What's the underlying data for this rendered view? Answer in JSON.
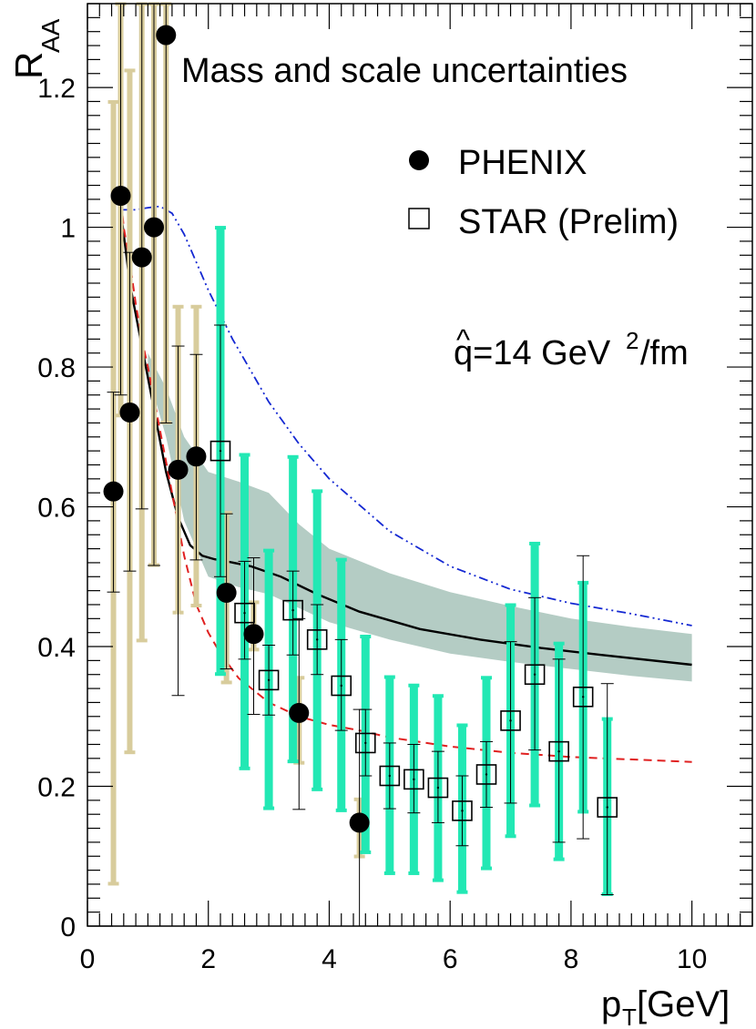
{
  "chart_data": {
    "type": "scatter",
    "title": "Mass and scale uncertainties",
    "annotation": {
      "hat": "^",
      "text": "q=14 GeV",
      "sup": "2",
      "tail": "/fm"
    },
    "xlabel": {
      "main": "p",
      "sub": "T",
      "rest": "[GeV]"
    },
    "ylabel": {
      "main": "R",
      "sub": "AA"
    },
    "xlim": [
      0,
      11
    ],
    "ylim": [
      0,
      1.32
    ],
    "x_ticks": [
      "0",
      "2",
      "4",
      "6",
      "8",
      "10"
    ],
    "y_ticks": [
      "0",
      "0.2",
      "0.4",
      "0.6",
      "0.8",
      "1",
      "1.2"
    ],
    "colors": {
      "phenix_sys": "#d8cc9c",
      "star_sys": "#22e8b4",
      "band": "#b4ccc4",
      "solid": "#000000",
      "dashed": "#e02020",
      "dashdot": "#1428d2"
    },
    "legend": [
      {
        "label": "PHENIX",
        "marker": "filled-circle"
      },
      {
        "label": "STAR (Prelim)",
        "marker": "open-square"
      }
    ],
    "series": [
      {
        "name": "PHENIX",
        "x": [
          0.43,
          0.55,
          0.7,
          0.9,
          1.1,
          1.3,
          1.5,
          1.8,
          2.3,
          2.75,
          3.5,
          4.5
        ],
        "y": [
          0.622,
          1.045,
          0.735,
          0.957,
          1.0,
          1.275,
          0.653,
          0.672,
          0.477,
          0.418,
          0.305,
          0.148
        ],
        "stat_lo": [
          0.478,
          0.76,
          0.508,
          0.597,
          0.516,
          0.72,
          0.33,
          0.524,
          0.368,
          0.303,
          0.167,
          0.0
        ],
        "stat_hi": [
          0.764,
          1.32,
          0.964,
          1.32,
          1.32,
          1.32,
          0.83,
          0.818,
          0.59,
          0.527,
          0.44,
          0.31
        ],
        "sys_lo": [
          0.06,
          0.73,
          0.248,
          0.408,
          0.516,
          0.72,
          0.448,
          0.458,
          0.348,
          0.395,
          0.233,
          0.099
        ],
        "sys_hi": [
          1.18,
          1.32,
          1.225,
          1.32,
          1.32,
          1.32,
          0.887,
          0.887,
          0.592,
          0.464,
          0.356,
          0.182
        ]
      },
      {
        "name": "STAR (Prelim)",
        "x": [
          2.2,
          2.6,
          3.0,
          3.4,
          3.8,
          4.2,
          4.6,
          5.0,
          5.4,
          5.8,
          6.2,
          6.6,
          7.0,
          7.4,
          7.8,
          8.2,
          8.6
        ],
        "y": [
          0.68,
          0.448,
          0.352,
          0.452,
          0.41,
          0.344,
          0.262,
          0.215,
          0.21,
          0.198,
          0.165,
          0.217,
          0.294,
          0.36,
          0.25,
          0.328,
          0.17
        ],
        "stat_lo": [
          0.5,
          0.382,
          0.302,
          0.388,
          0.36,
          0.28,
          0.215,
          0.168,
          0.162,
          0.148,
          0.115,
          0.17,
          0.176,
          0.252,
          0.12,
          0.125,
          0.045
        ],
        "stat_hi": [
          0.86,
          0.522,
          0.402,
          0.508,
          0.46,
          0.41,
          0.31,
          0.262,
          0.26,
          0.25,
          0.215,
          0.264,
          0.407,
          0.47,
          0.382,
          0.53,
          0.347
        ],
        "sys_lo": [
          0.36,
          0.225,
          0.168,
          0.235,
          0.195,
          0.165,
          0.105,
          0.075,
          0.075,
          0.065,
          0.048,
          0.082,
          0.128,
          0.172,
          0.095,
          0.163,
          0.045
        ],
        "sys_hi": [
          1.0,
          0.675,
          0.538,
          0.672,
          0.623,
          0.525,
          0.415,
          0.357,
          0.345,
          0.33,
          0.288,
          0.356,
          0.46,
          0.548,
          0.405,
          0.492,
          0.297
        ]
      }
    ],
    "curves": [
      {
        "style": "solid",
        "x": [
          0.55,
          0.7,
          0.9,
          1.1,
          1.3,
          1.5,
          1.7,
          1.9,
          2.1,
          2.3,
          2.7,
          3.2,
          3.8,
          4.5,
          5.5,
          6.5,
          7.5,
          8.5,
          10.0
        ],
        "y": [
          1.025,
          0.92,
          0.83,
          0.74,
          0.65,
          0.585,
          0.545,
          0.53,
          0.525,
          0.522,
          0.515,
          0.5,
          0.475,
          0.45,
          0.425,
          0.41,
          0.398,
          0.388,
          0.374
        ]
      },
      {
        "style": "dashed",
        "x": [
          0.52,
          0.6,
          0.7,
          0.8,
          0.9,
          1.0,
          1.2,
          1.4,
          1.6,
          1.8,
          2.0,
          2.2,
          2.5,
          3.0,
          3.5,
          4.0,
          4.5,
          5.0,
          6.0,
          7.0,
          8.0,
          10.0
        ],
        "y": [
          1.075,
          1.0,
          0.95,
          0.89,
          0.84,
          0.8,
          0.71,
          0.62,
          0.53,
          0.46,
          0.42,
          0.39,
          0.355,
          0.32,
          0.3,
          0.288,
          0.28,
          0.27,
          0.257,
          0.248,
          0.242,
          0.235
        ]
      },
      {
        "style": "dashdot",
        "x": [
          0.55,
          0.8,
          1.0,
          1.2,
          1.4,
          1.6,
          1.8,
          2.0,
          2.4,
          3.0,
          3.5,
          4.0,
          5.0,
          6.0,
          7.0,
          8.0,
          9.0,
          10.0
        ],
        "y": [
          1.025,
          1.025,
          1.028,
          1.03,
          1.02,
          0.99,
          0.95,
          0.91,
          0.84,
          0.75,
          0.69,
          0.64,
          0.565,
          0.515,
          0.482,
          0.462,
          0.447,
          0.43
        ]
      }
    ],
    "band": {
      "x": [
        1.0,
        1.3,
        1.6,
        2.0,
        2.5,
        3.0,
        3.5,
        4.0,
        5.0,
        6.0,
        7.0,
        8.0,
        9.0,
        10.0
      ],
      "lo": [
        0.79,
        0.7,
        0.58,
        0.5,
        0.485,
        0.475,
        0.455,
        0.435,
        0.41,
        0.39,
        0.378,
        0.368,
        0.358,
        0.35
      ],
      "hi": [
        0.82,
        0.77,
        0.7,
        0.65,
        0.636,
        0.62,
        0.575,
        0.54,
        0.505,
        0.478,
        0.458,
        0.44,
        0.428,
        0.418
      ]
    }
  }
}
